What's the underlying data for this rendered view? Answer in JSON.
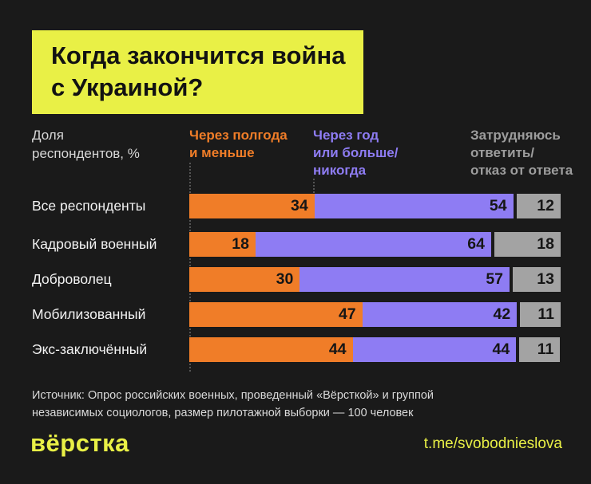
{
  "title": {
    "line1": "Когда закончится война",
    "line2": "с Украиной?"
  },
  "colors": {
    "background": "#1a1a1a",
    "accent_yellow": "#e9f046",
    "orange": "#f07d28",
    "purple": "#8e7cf3",
    "gray": "#a3a3a3",
    "number_text": "#161616"
  },
  "chart_data": {
    "type": "bar",
    "stacked": true,
    "orientation": "horizontal",
    "value_unit": "%",
    "xlim": [
      0,
      100
    ],
    "unit_label": "Доля\nреспондентов, %",
    "categories": [
      "Все респонденты",
      "Кадровый военный",
      "Доброволец",
      "Мобилизованный",
      "Экс-заключённый"
    ],
    "series": [
      {
        "name": "Через полгода и меньше",
        "header": "Через полгода\nи меньше",
        "color": "#f07d28",
        "values": [
          34,
          18,
          30,
          47,
          44
        ]
      },
      {
        "name": "Через год или больше/никогда",
        "header": "Через год\nили больше/\nникогда",
        "color": "#8e7cf3",
        "values": [
          54,
          64,
          57,
          42,
          44
        ]
      },
      {
        "name": "Затрудняюсь ответить/отказ от ответа",
        "header": "Затрудняюсь\nответить/\nотказ от ответа",
        "color": "#a3a3a3",
        "header_color": "#9d9d9d",
        "values": [
          12,
          18,
          13,
          11,
          11
        ]
      }
    ]
  },
  "source": "Источник: Опрос российских военных, проведенный «Вёрсткой» и группой\nнезависимых социологов, размер пилотажной выборки — 100 человек",
  "footer": {
    "logo": "вёрстка",
    "link": "t.me/svobodnieslova"
  }
}
